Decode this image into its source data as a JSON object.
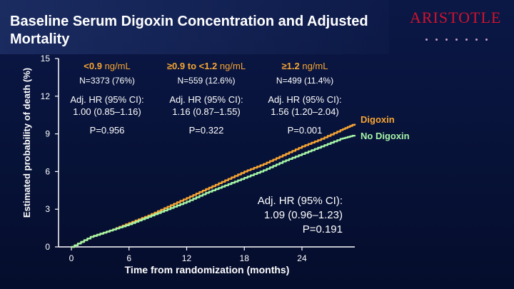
{
  "title": "Baseline Serum Digoxin Concentration and Adjusted Mortality",
  "logo": "ARISTOTLE",
  "groups": [
    {
      "label_value": "<0.9",
      "label_unit": "ng/mL",
      "n": "N=3373 (76%)",
      "hr_line1": "Adj. HR (95% CI):",
      "hr_line2": "1.00 (0.85–1.16)",
      "p": "P=0.956"
    },
    {
      "label_value": "≥0.9 to <1.2",
      "label_unit": "ng/mL",
      "n": "N=559 (12.6%)",
      "hr_line1": "Adj. HR (95% CI):",
      "hr_line2": "1.16 (0.87–1.55)",
      "p": "P=0.322"
    },
    {
      "label_value": "≥1.2",
      "label_unit": "ng/mL",
      "n": "N=499 (11.4%)",
      "hr_line1": "Adj. HR (95% CI):",
      "hr_line2": "1.56 (1.20–2.04)",
      "p": "P=0.001"
    }
  ],
  "overall": {
    "line1": "Adj. HR (95% CI):",
    "line2": "1.09 (0.96–1.23)",
    "line3": "P=0.191"
  },
  "chart_data": {
    "type": "line",
    "xlabel": "Time from randomization (months)",
    "ylabel": "Estimated probability of death (%)",
    "xlim": [
      0,
      29.5
    ],
    "ylim": [
      0,
      15
    ],
    "x_ticks": [
      0,
      6,
      12,
      18,
      24
    ],
    "y_ticks": [
      0,
      3,
      6,
      9,
      12,
      15
    ],
    "legend_position": "right",
    "series": [
      {
        "name": "Digoxin",
        "color": "#f7a533",
        "x": [
          0,
          2,
          4,
          6,
          8,
          10,
          12,
          14,
          16,
          18,
          20,
          22,
          24,
          26,
          28,
          29.5
        ],
        "y": [
          0,
          0.8,
          1.3,
          1.9,
          2.5,
          3.2,
          3.9,
          4.6,
          5.3,
          6.0,
          6.6,
          7.3,
          8.0,
          8.6,
          9.3,
          9.8
        ]
      },
      {
        "name": "No Digoxin",
        "color": "#a6f5a6",
        "x": [
          0,
          2,
          4,
          6,
          8,
          10,
          12,
          14,
          16,
          18,
          20,
          22,
          24,
          26,
          28,
          29.5
        ],
        "y": [
          0,
          0.8,
          1.3,
          1.8,
          2.4,
          3.0,
          3.6,
          4.3,
          4.9,
          5.5,
          6.1,
          6.8,
          7.4,
          8.0,
          8.6,
          8.9
        ]
      }
    ]
  }
}
